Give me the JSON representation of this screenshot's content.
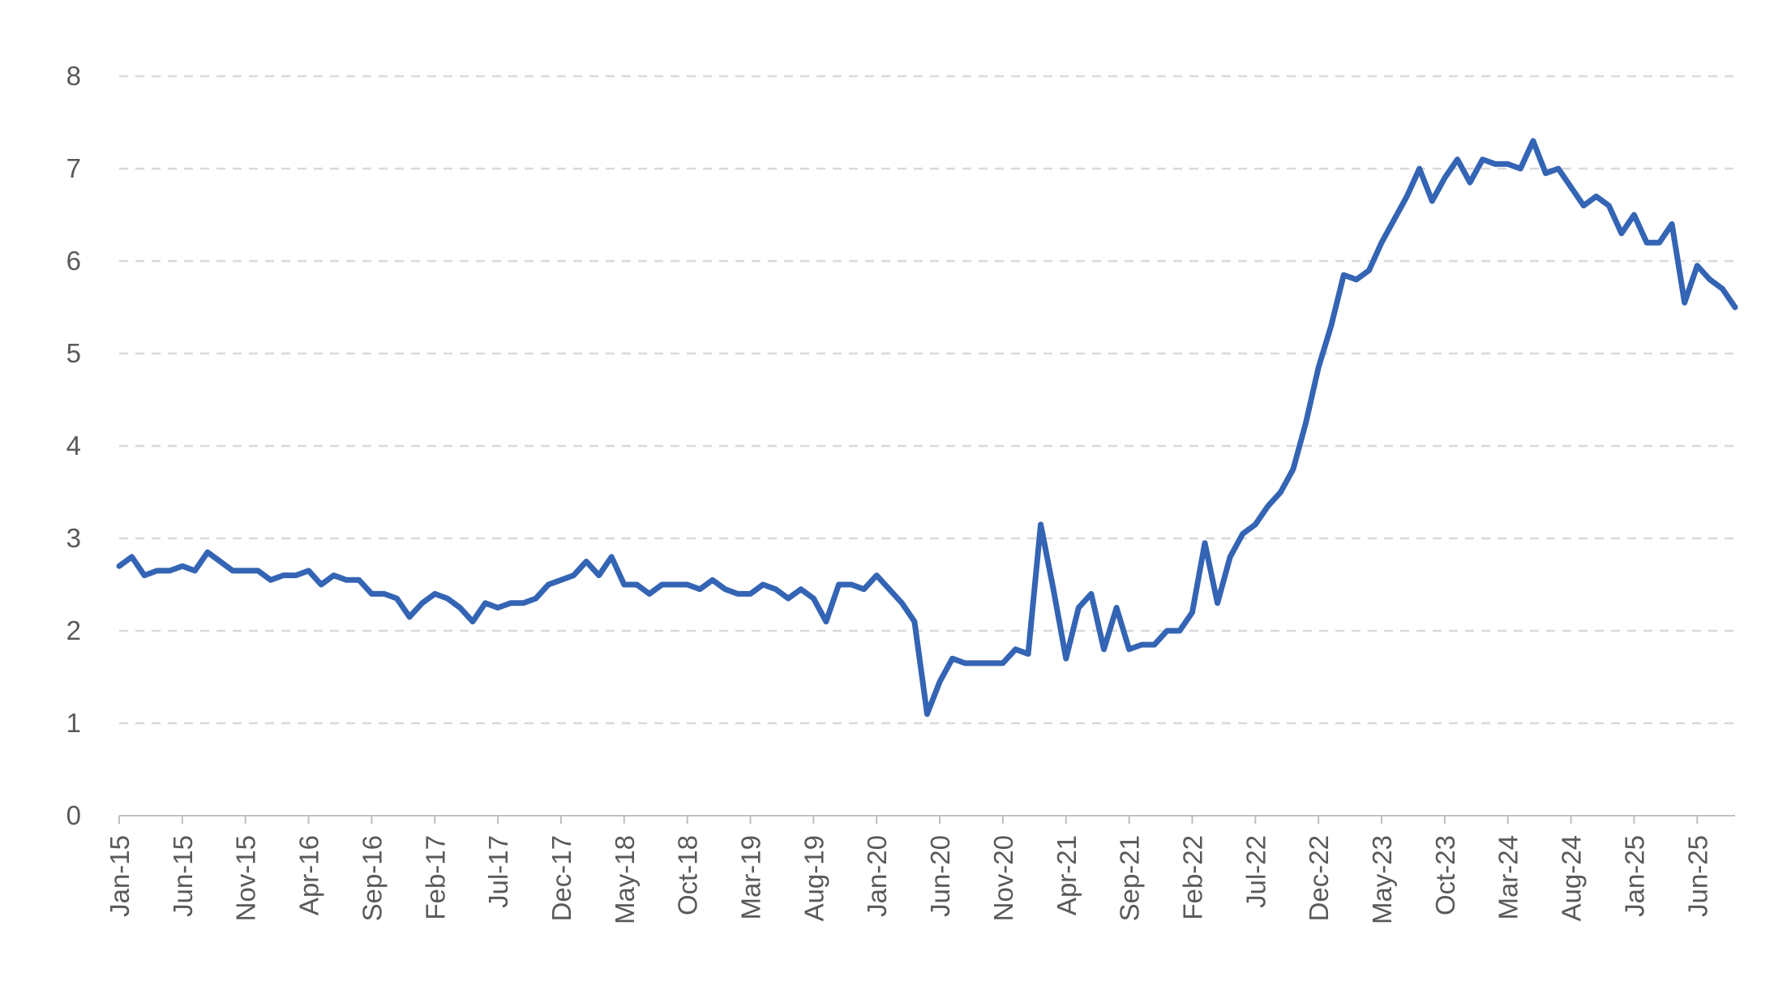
{
  "chart_data": {
    "type": "line",
    "title": "",
    "xlabel": "",
    "ylabel": "",
    "ylim": [
      0,
      8
    ],
    "yticks": [
      0,
      1,
      2,
      3,
      4,
      5,
      6,
      7,
      8
    ],
    "grid": true,
    "legend": "none",
    "line_color": "#3464b4",
    "xtick_labels": [
      "Jan-15",
      "Jun-15",
      "Nov-15",
      "Apr-16",
      "Sep-16",
      "Feb-17",
      "Jul-17",
      "Dec-17",
      "May-18",
      "Oct-18",
      "Mar-19",
      "Aug-19",
      "Jan-20",
      "Jun-20",
      "Nov-20",
      "Apr-21",
      "Sep-21",
      "Feb-22",
      "Jul-22",
      "Dec-22",
      "May-23",
      "Oct-23",
      "Mar-24",
      "Aug-24",
      "Jan-25",
      "Jun-25"
    ],
    "x": [
      "Jan-15",
      "Feb-15",
      "Mar-15",
      "Apr-15",
      "May-15",
      "Jun-15",
      "Jul-15",
      "Aug-15",
      "Sep-15",
      "Oct-15",
      "Nov-15",
      "Dec-15",
      "Jan-16",
      "Feb-16",
      "Mar-16",
      "Apr-16",
      "May-16",
      "Jun-16",
      "Jul-16",
      "Aug-16",
      "Sep-16",
      "Oct-16",
      "Nov-16",
      "Dec-16",
      "Jan-17",
      "Feb-17",
      "Mar-17",
      "Apr-17",
      "May-17",
      "Jun-17",
      "Jul-17",
      "Aug-17",
      "Sep-17",
      "Oct-17",
      "Nov-17",
      "Dec-17",
      "Jan-18",
      "Feb-18",
      "Mar-18",
      "Apr-18",
      "May-18",
      "Jun-18",
      "Jul-18",
      "Aug-18",
      "Sep-18",
      "Oct-18",
      "Nov-18",
      "Dec-18",
      "Jan-19",
      "Feb-19",
      "Mar-19",
      "Apr-19",
      "May-19",
      "Jun-19",
      "Jul-19",
      "Aug-19",
      "Sep-19",
      "Oct-19",
      "Nov-19",
      "Dec-19",
      "Jan-20",
      "Feb-20",
      "Mar-20",
      "Apr-20",
      "May-20",
      "Jun-20",
      "Jul-20",
      "Aug-20",
      "Sep-20",
      "Oct-20",
      "Nov-20",
      "Dec-20",
      "Jan-21",
      "Feb-21",
      "Mar-21",
      "Apr-21",
      "May-21",
      "Jun-21",
      "Jul-21",
      "Aug-21",
      "Sep-21",
      "Oct-21",
      "Nov-21",
      "Dec-21",
      "Jan-22",
      "Feb-22",
      "Mar-22",
      "Apr-22",
      "May-22",
      "Jun-22",
      "Jul-22",
      "Aug-22",
      "Sep-22",
      "Oct-22",
      "Nov-22",
      "Dec-22",
      "Jan-23",
      "Feb-23",
      "Mar-23",
      "Apr-23",
      "May-23",
      "Jun-23",
      "Jul-23",
      "Aug-23",
      "Sep-23",
      "Oct-23",
      "Nov-23",
      "Dec-23",
      "Jan-24",
      "Feb-24",
      "Mar-24",
      "Apr-24",
      "May-24",
      "Jun-24",
      "Jul-24",
      "Aug-24",
      "Sep-24",
      "Oct-24",
      "Nov-24",
      "Dec-24",
      "Jan-25",
      "Feb-25",
      "Mar-25",
      "Apr-25",
      "May-25",
      "Jun-25",
      "Jul-25",
      "Aug-25",
      "Sep-25"
    ],
    "series": [
      {
        "values": [
          2.7,
          2.8,
          2.6,
          2.65,
          2.65,
          2.7,
          2.65,
          2.85,
          2.75,
          2.65,
          2.65,
          2.65,
          2.55,
          2.6,
          2.6,
          2.65,
          2.5,
          2.6,
          2.55,
          2.55,
          2.4,
          2.4,
          2.35,
          2.15,
          2.3,
          2.4,
          2.35,
          2.25,
          2.1,
          2.3,
          2.25,
          2.3,
          2.3,
          2.35,
          2.5,
          2.55,
          2.6,
          2.75,
          2.6,
          2.8,
          2.5,
          2.5,
          2.4,
          2.5,
          2.5,
          2.5,
          2.45,
          2.55,
          2.45,
          2.4,
          2.4,
          2.5,
          2.45,
          2.35,
          2.45,
          2.35,
          2.1,
          2.5,
          2.5,
          2.45,
          2.6,
          2.45,
          2.3,
          2.1,
          1.1,
          1.45,
          1.7,
          1.65,
          1.65,
          1.65,
          1.65,
          1.8,
          1.75,
          3.15,
          2.45,
          1.7,
          2.25,
          2.4,
          1.8,
          2.25,
          1.8,
          1.85,
          1.85,
          2.0,
          2.0,
          2.2,
          2.95,
          2.3,
          2.8,
          3.05,
          3.15,
          3.35,
          3.5,
          3.75,
          4.25,
          4.85,
          5.3,
          5.85,
          5.8,
          5.9,
          6.2,
          6.45,
          6.7,
          7.0,
          6.65,
          6.9,
          7.1,
          6.85,
          7.1,
          7.05,
          7.05,
          7.0,
          7.3,
          6.95,
          7.0,
          6.8,
          6.6,
          6.7,
          6.6,
          6.3,
          6.5,
          6.2,
          6.2,
          6.4,
          5.55,
          5.95,
          5.8,
          5.7,
          5.5
        ]
      }
    ]
  }
}
